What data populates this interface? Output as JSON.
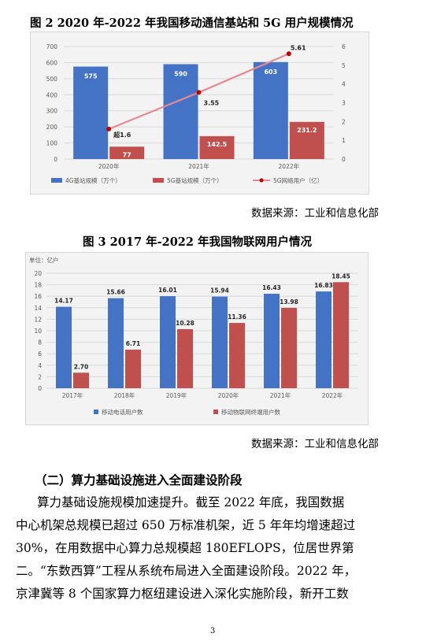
{
  "figure2": {
    "title": "图 2   2020 年-2022 年我国移动通信基站和 5G 用户规模情况",
    "source": "数据来源：工业和信息化部",
    "legend": {
      "s1": "4G基站规模（万个）",
      "s2": "5G基站规模（万个）",
      "s3": "5G网络用户（亿）"
    }
  },
  "figure3": {
    "title": "图 3   2017 年-2022 年我国物联网用户情况",
    "source": "数据来源：工业和信息化部",
    "unit_label": "单位：亿户",
    "legend": {
      "s1": "移动电话用户数",
      "s2": "移动物联网终端用户数"
    }
  },
  "section": {
    "heading": "（二）算力基础设施进入全面建设阶段",
    "lines": [
      "算力基础设施规模加速提升。截至 2022 年底，我国数据",
      "中心机架总规模已超过 650 万标准机架，近 5 年年均增速超过",
      "30%，在用数据中心算力总规模超 180EFLOPS，位居世界第",
      "二。“东数西算”工程从系统布局进入全面建设阶段。2022 年，",
      "京津冀等 8 个国家算力枢纽建设进入深化实施阶段，新开工数"
    ]
  },
  "page_number": "3",
  "colors": {
    "bar_blue": "#4472c4",
    "bar_red": "#c0504d",
    "line_pink": "#e58a93",
    "marker_red": "#c00000"
  },
  "chart_data": [
    {
      "type": "bar",
      "categories": [
        "2020年",
        "2021年",
        "2022年"
      ],
      "series": [
        {
          "name": "4G基站规模（万个）",
          "values": [
            575,
            590,
            603
          ],
          "labels": [
            "575",
            "590",
            "603"
          ]
        },
        {
          "name": "5G基站规模（万个）",
          "values": [
            77,
            142.5,
            231.2
          ],
          "labels": [
            "77",
            "142.5",
            "231.2"
          ]
        },
        {
          "name": "5G网络用户（亿）",
          "type": "line",
          "axis": "right",
          "values": [
            1.6,
            3.55,
            5.61
          ],
          "labels": [
            "超1.6",
            "3.55",
            "5.61"
          ]
        }
      ],
      "y_left": {
        "range": [
          0,
          700
        ],
        "ticks": [
          "0",
          "100",
          "200",
          "300",
          "400",
          "500",
          "600",
          "700"
        ]
      },
      "y_right": {
        "range": [
          0,
          6
        ],
        "ticks": [
          "0",
          "1",
          "2",
          "3",
          "4",
          "5",
          "6"
        ]
      },
      "grid": true,
      "legend_position": "bottom"
    },
    {
      "type": "bar",
      "categories": [
        "2017年",
        "2018年",
        "2019年",
        "2020年",
        "2021年",
        "2022年"
      ],
      "series": [
        {
          "name": "移动电话用户数",
          "values": [
            14.17,
            15.66,
            16.01,
            15.94,
            16.43,
            16.83
          ],
          "labels": [
            "14.17",
            "15.66",
            "16.01",
            "15.94",
            "16.43",
            "16.83"
          ]
        },
        {
          "name": "移动物联网终端用户数",
          "values": [
            2.7,
            6.71,
            10.28,
            11.36,
            13.98,
            18.45
          ],
          "labels": [
            "2.70",
            "6.71",
            "10.28",
            "11.36",
            "13.98",
            "18.45"
          ]
        }
      ],
      "y": {
        "range": [
          0,
          20
        ],
        "ticks": [
          "0",
          "2",
          "4",
          "6",
          "8",
          "10",
          "12",
          "14",
          "16",
          "18",
          "20"
        ]
      },
      "grid": true,
      "legend_position": "bottom"
    }
  ]
}
